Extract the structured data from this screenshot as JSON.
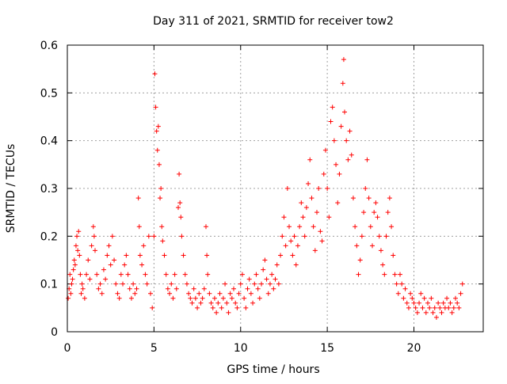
{
  "chart_data": {
    "type": "scatter",
    "title": "Day 311 of 2021, SRMTID for receiver tow2",
    "xlabel": "GPS time / hours",
    "ylabel": "SRMTID / TECUs",
    "xlim": [
      0,
      24
    ],
    "ylim": [
      0,
      0.6
    ],
    "x_ticks": [
      0,
      5,
      10,
      15,
      20
    ],
    "x_tick_labels": [
      "0",
      "5",
      "10",
      "15",
      "20"
    ],
    "y_ticks": [
      0,
      0.1,
      0.2,
      0.3,
      0.4,
      0.5,
      0.6
    ],
    "y_tick_labels": [
      "0",
      "0.1",
      "0.2",
      "0.3",
      "0.4",
      "0.5",
      "0.6"
    ],
    "grid": true,
    "marker": "plus",
    "color": "#ff0000",
    "series": [
      {
        "name": "SRMTID",
        "points": [
          [
            0.05,
            0.07
          ],
          [
            0.1,
            0.09
          ],
          [
            0.15,
            0.12
          ],
          [
            0.2,
            0.08
          ],
          [
            0.25,
            0.1
          ],
          [
            0.3,
            0.11
          ],
          [
            0.35,
            0.13
          ],
          [
            0.4,
            0.15
          ],
          [
            0.45,
            0.14
          ],
          [
            0.5,
            0.18
          ],
          [
            0.55,
            0.2
          ],
          [
            0.6,
            0.17
          ],
          [
            0.65,
            0.21
          ],
          [
            0.7,
            0.16
          ],
          [
            0.75,
            0.12
          ],
          [
            0.8,
            0.08
          ],
          [
            0.85,
            0.1
          ],
          [
            0.9,
            0.09
          ],
          [
            1.0,
            0.07
          ],
          [
            1.1,
            0.12
          ],
          [
            1.2,
            0.15
          ],
          [
            1.3,
            0.11
          ],
          [
            1.4,
            0.18
          ],
          [
            1.5,
            0.22
          ],
          [
            1.55,
            0.2
          ],
          [
            1.6,
            0.17
          ],
          [
            1.7,
            0.12
          ],
          [
            1.8,
            0.09
          ],
          [
            1.9,
            0.1
          ],
          [
            2.0,
            0.08
          ],
          [
            2.1,
            0.13
          ],
          [
            2.2,
            0.11
          ],
          [
            2.3,
            0.16
          ],
          [
            2.4,
            0.18
          ],
          [
            2.5,
            0.14
          ],
          [
            2.6,
            0.2
          ],
          [
            2.7,
            0.15
          ],
          [
            2.8,
            0.1
          ],
          [
            2.9,
            0.08
          ],
          [
            3.0,
            0.07
          ],
          [
            3.1,
            0.12
          ],
          [
            3.2,
            0.1
          ],
          [
            3.3,
            0.14
          ],
          [
            3.4,
            0.16
          ],
          [
            3.5,
            0.12
          ],
          [
            3.6,
            0.09
          ],
          [
            3.7,
            0.07
          ],
          [
            3.8,
            0.1
          ],
          [
            3.9,
            0.08
          ],
          [
            4.0,
            0.09
          ],
          [
            4.1,
            0.28
          ],
          [
            4.15,
            0.22
          ],
          [
            4.2,
            0.16
          ],
          [
            4.3,
            0.14
          ],
          [
            4.4,
            0.18
          ],
          [
            4.5,
            0.12
          ],
          [
            4.6,
            0.1
          ],
          [
            4.7,
            0.2
          ],
          [
            4.8,
            0.08
          ],
          [
            4.9,
            0.05
          ],
          [
            5.0,
            0.2
          ],
          [
            5.05,
            0.54
          ],
          [
            5.1,
            0.47
          ],
          [
            5.15,
            0.42
          ],
          [
            5.2,
            0.38
          ],
          [
            5.25,
            0.43
          ],
          [
            5.3,
            0.35
          ],
          [
            5.35,
            0.28
          ],
          [
            5.4,
            0.3
          ],
          [
            5.45,
            0.22
          ],
          [
            5.5,
            0.19
          ],
          [
            5.6,
            0.16
          ],
          [
            5.7,
            0.12
          ],
          [
            5.8,
            0.09
          ],
          [
            5.9,
            0.08
          ],
          [
            6.0,
            0.1
          ],
          [
            6.1,
            0.07
          ],
          [
            6.2,
            0.12
          ],
          [
            6.3,
            0.09
          ],
          [
            6.4,
            0.26
          ],
          [
            6.45,
            0.33
          ],
          [
            6.5,
            0.27
          ],
          [
            6.55,
            0.24
          ],
          [
            6.6,
            0.2
          ],
          [
            6.7,
            0.16
          ],
          [
            6.8,
            0.12
          ],
          [
            6.9,
            0.1
          ],
          [
            7.0,
            0.08
          ],
          [
            7.1,
            0.07
          ],
          [
            7.2,
            0.06
          ],
          [
            7.3,
            0.09
          ],
          [
            7.4,
            0.07
          ],
          [
            7.5,
            0.05
          ],
          [
            7.6,
            0.08
          ],
          [
            7.7,
            0.06
          ],
          [
            7.8,
            0.07
          ],
          [
            7.9,
            0.09
          ],
          [
            8.0,
            0.22
          ],
          [
            8.05,
            0.16
          ],
          [
            8.1,
            0.12
          ],
          [
            8.2,
            0.08
          ],
          [
            8.3,
            0.06
          ],
          [
            8.4,
            0.05
          ],
          [
            8.5,
            0.07
          ],
          [
            8.6,
            0.04
          ],
          [
            8.7,
            0.06
          ],
          [
            8.8,
            0.08
          ],
          [
            8.9,
            0.05
          ],
          [
            9.0,
            0.07
          ],
          [
            9.1,
            0.1
          ],
          [
            9.2,
            0.06
          ],
          [
            9.3,
            0.04
          ],
          [
            9.4,
            0.08
          ],
          [
            9.5,
            0.07
          ],
          [
            9.6,
            0.09
          ],
          [
            9.7,
            0.06
          ],
          [
            9.8,
            0.05
          ],
          [
            9.9,
            0.08
          ],
          [
            10.0,
            0.1
          ],
          [
            10.1,
            0.12
          ],
          [
            10.2,
            0.07
          ],
          [
            10.3,
            0.05
          ],
          [
            10.4,
            0.09
          ],
          [
            10.5,
            0.11
          ],
          [
            10.6,
            0.08
          ],
          [
            10.7,
            0.06
          ],
          [
            10.8,
            0.1
          ],
          [
            10.9,
            0.12
          ],
          [
            11.0,
            0.09
          ],
          [
            11.1,
            0.07
          ],
          [
            11.2,
            0.1
          ],
          [
            11.3,
            0.13
          ],
          [
            11.4,
            0.15
          ],
          [
            11.5,
            0.11
          ],
          [
            11.6,
            0.08
          ],
          [
            11.7,
            0.1
          ],
          [
            11.8,
            0.12
          ],
          [
            11.9,
            0.09
          ],
          [
            12.0,
            0.11
          ],
          [
            12.1,
            0.14
          ],
          [
            12.2,
            0.1
          ],
          [
            12.3,
            0.16
          ],
          [
            12.4,
            0.2
          ],
          [
            12.5,
            0.24
          ],
          [
            12.6,
            0.18
          ],
          [
            12.7,
            0.3
          ],
          [
            12.8,
            0.22
          ],
          [
            12.9,
            0.19
          ],
          [
            13.0,
            0.16
          ],
          [
            13.1,
            0.2
          ],
          [
            13.2,
            0.14
          ],
          [
            13.3,
            0.18
          ],
          [
            13.4,
            0.22
          ],
          [
            13.5,
            0.27
          ],
          [
            13.6,
            0.24
          ],
          [
            13.7,
            0.2
          ],
          [
            13.8,
            0.26
          ],
          [
            13.9,
            0.31
          ],
          [
            14.0,
            0.36
          ],
          [
            14.1,
            0.28
          ],
          [
            14.2,
            0.22
          ],
          [
            14.3,
            0.17
          ],
          [
            14.4,
            0.25
          ],
          [
            14.5,
            0.3
          ],
          [
            14.6,
            0.21
          ],
          [
            14.7,
            0.19
          ],
          [
            14.8,
            0.33
          ],
          [
            14.9,
            0.38
          ],
          [
            15.0,
            0.3
          ],
          [
            15.1,
            0.24
          ],
          [
            15.2,
            0.44
          ],
          [
            15.3,
            0.47
          ],
          [
            15.4,
            0.4
          ],
          [
            15.5,
            0.35
          ],
          [
            15.6,
            0.27
          ],
          [
            15.7,
            0.33
          ],
          [
            15.8,
            0.43
          ],
          [
            15.9,
            0.52
          ],
          [
            15.95,
            0.57
          ],
          [
            16.0,
            0.46
          ],
          [
            16.1,
            0.4
          ],
          [
            16.2,
            0.36
          ],
          [
            16.3,
            0.42
          ],
          [
            16.4,
            0.37
          ],
          [
            16.5,
            0.28
          ],
          [
            16.6,
            0.22
          ],
          [
            16.7,
            0.18
          ],
          [
            16.8,
            0.12
          ],
          [
            16.9,
            0.15
          ],
          [
            17.0,
            0.2
          ],
          [
            17.1,
            0.25
          ],
          [
            17.2,
            0.3
          ],
          [
            17.3,
            0.36
          ],
          [
            17.4,
            0.28
          ],
          [
            17.5,
            0.22
          ],
          [
            17.6,
            0.18
          ],
          [
            17.7,
            0.25
          ],
          [
            17.8,
            0.27
          ],
          [
            17.9,
            0.24
          ],
          [
            18.0,
            0.2
          ],
          [
            18.1,
            0.17
          ],
          [
            18.2,
            0.14
          ],
          [
            18.3,
            0.12
          ],
          [
            18.4,
            0.2
          ],
          [
            18.5,
            0.25
          ],
          [
            18.6,
            0.28
          ],
          [
            18.7,
            0.22
          ],
          [
            18.8,
            0.16
          ],
          [
            18.9,
            0.12
          ],
          [
            19.0,
            0.1
          ],
          [
            19.1,
            0.08
          ],
          [
            19.2,
            0.12
          ],
          [
            19.3,
            0.1
          ],
          [
            19.4,
            0.07
          ],
          [
            19.5,
            0.09
          ],
          [
            19.6,
            0.06
          ],
          [
            19.7,
            0.05
          ],
          [
            19.8,
            0.08
          ],
          [
            19.9,
            0.07
          ],
          [
            20.0,
            0.06
          ],
          [
            20.1,
            0.05
          ],
          [
            20.2,
            0.04
          ],
          [
            20.3,
            0.06
          ],
          [
            20.4,
            0.08
          ],
          [
            20.5,
            0.05
          ],
          [
            20.6,
            0.07
          ],
          [
            20.7,
            0.04
          ],
          [
            20.8,
            0.06
          ],
          [
            20.9,
            0.05
          ],
          [
            21.0,
            0.07
          ],
          [
            21.1,
            0.04
          ],
          [
            21.2,
            0.05
          ],
          [
            21.3,
            0.03
          ],
          [
            21.4,
            0.06
          ],
          [
            21.5,
            0.05
          ],
          [
            21.6,
            0.04
          ],
          [
            21.7,
            0.06
          ],
          [
            21.8,
            0.05
          ],
          [
            21.9,
            0.07
          ],
          [
            22.0,
            0.05
          ],
          [
            22.1,
            0.06
          ],
          [
            22.2,
            0.04
          ],
          [
            22.3,
            0.05
          ],
          [
            22.4,
            0.07
          ],
          [
            22.5,
            0.06
          ],
          [
            22.6,
            0.05
          ],
          [
            22.7,
            0.08
          ],
          [
            22.8,
            0.1
          ]
        ]
      }
    ]
  }
}
